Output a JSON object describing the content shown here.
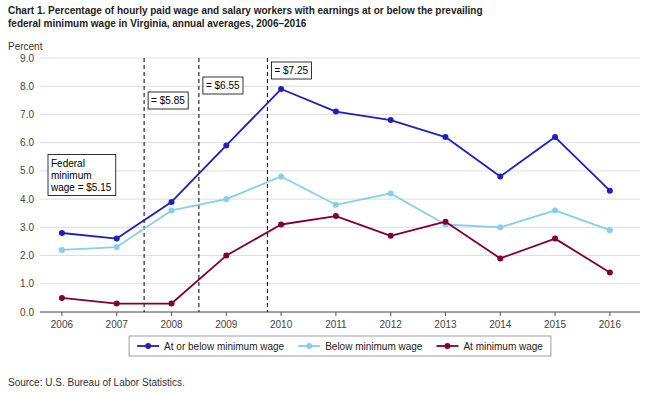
{
  "chart_data": {
    "type": "line",
    "title": "Chart 1. Percentage of hourly paid wage and salary workers with earnings at or below the prevailing",
    "subtitle": "federal minimum wage in Virginia, annual averages, 2006–2016",
    "y_label": "Percent",
    "source": "Source: U.S. Bureau of Labor Statistics.",
    "x": [
      2006,
      2007,
      2008,
      2009,
      2010,
      2011,
      2012,
      2013,
      2014,
      2015,
      2016
    ],
    "xlim": [
      2005.6,
      2016.55
    ],
    "xticks": [
      2006,
      2007,
      2008,
      2009,
      2010,
      2011,
      2012,
      2013,
      2014,
      2015,
      2016
    ],
    "ylim": [
      0.0,
      9.0
    ],
    "yticks": [
      {
        "value": 0.0,
        "label": "0.0"
      },
      {
        "value": 1.0,
        "label": "1.0"
      },
      {
        "value": 2.0,
        "label": "2.0"
      },
      {
        "value": 3.0,
        "label": "3.0"
      },
      {
        "value": 4.0,
        "label": "4.0"
      },
      {
        "value": 5.0,
        "label": "5.0"
      },
      {
        "value": 6.0,
        "label": "6.0"
      },
      {
        "value": 7.0,
        "label": "7.0"
      },
      {
        "value": 8.0,
        "label": "8.0"
      },
      {
        "value": 9.0,
        "label": "9.0"
      }
    ],
    "grid": true,
    "legend": "bottom",
    "marker": "circle",
    "series": [
      {
        "name": "At or below minimum wage",
        "color": "#1f1fbf",
        "values": [
          2.8,
          2.6,
          3.9,
          5.9,
          7.9,
          7.1,
          6.8,
          6.2,
          4.8,
          6.2,
          4.3
        ]
      },
      {
        "name": "Below minimum wage",
        "color": "#87CEEB",
        "values": [
          2.2,
          2.3,
          3.6,
          4.0,
          4.8,
          3.8,
          4.2,
          3.1,
          3.0,
          3.6,
          2.9
        ]
      },
      {
        "name": "At minimum wage",
        "color": "#7f0035",
        "values": [
          0.5,
          0.3,
          0.3,
          2.0,
          3.1,
          3.4,
          2.7,
          3.2,
          1.9,
          2.6,
          1.4
        ]
      }
    ],
    "annotations": [
      {
        "x": 2007.5,
        "text": "= $5.85"
      },
      {
        "x": 2008.5,
        "text": "= $6.55"
      },
      {
        "x": 2009.75,
        "text": "= $7.25"
      },
      {
        "text": "Federal\nminimum\nwage = $5.15"
      }
    ]
  }
}
